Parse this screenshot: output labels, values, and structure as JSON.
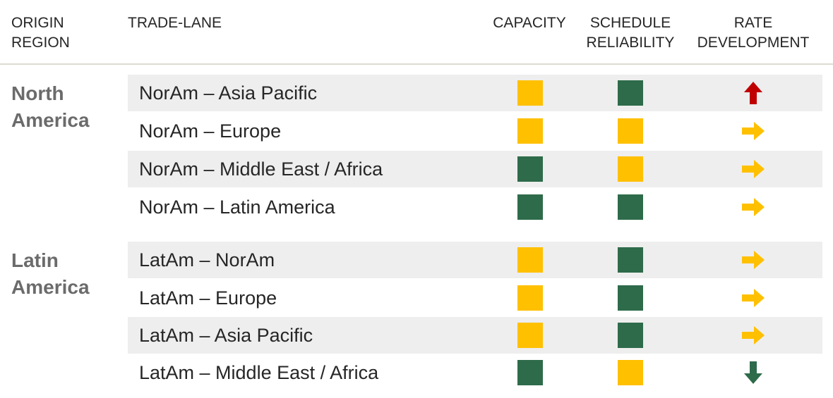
{
  "headers": {
    "origin_region": [
      "ORIGIN",
      "REGION"
    ],
    "trade_lane": "TRADE-LANE",
    "capacity": "CAPACITY",
    "schedule_reliability": [
      "SCHEDULE",
      "RELIABILITY"
    ],
    "rate_development": [
      "RATE",
      "DEVELOPMENT"
    ]
  },
  "colors": {
    "amber": "#ffc000",
    "green": "#2e6b4a",
    "up": "#c00000",
    "down": "#2e6b4a",
    "flat": "#ffc000",
    "region_text": "#6b6b6b",
    "row_shade": "#eeeeee"
  },
  "regions": [
    {
      "name": [
        "North",
        "America"
      ]
    },
    {
      "name": [
        "Latin",
        "America"
      ]
    }
  ],
  "chart_data": {
    "type": "table",
    "columns": [
      "ORIGIN REGION",
      "TRADE-LANE",
      "CAPACITY",
      "SCHEDULE RELIABILITY",
      "RATE DEVELOPMENT"
    ],
    "rows": [
      {
        "region": "North America",
        "lane": "NorAm – Asia Pacific",
        "capacity": "amber",
        "reliability": "green",
        "rate": "up"
      },
      {
        "region": "North America",
        "lane": "NorAm – Europe",
        "capacity": "amber",
        "reliability": "amber",
        "rate": "flat"
      },
      {
        "region": "North America",
        "lane": "NorAm – Middle East / Africa",
        "capacity": "green",
        "reliability": "amber",
        "rate": "flat"
      },
      {
        "region": "North America",
        "lane": "NorAm – Latin America",
        "capacity": "green",
        "reliability": "green",
        "rate": "flat"
      },
      {
        "region": "Latin America",
        "lane": "LatAm – NorAm",
        "capacity": "amber",
        "reliability": "green",
        "rate": "flat"
      },
      {
        "region": "Latin America",
        "lane": "LatAm – Europe",
        "capacity": "amber",
        "reliability": "green",
        "rate": "flat"
      },
      {
        "region": "Latin America",
        "lane": "LatAm – Asia Pacific",
        "capacity": "amber",
        "reliability": "green",
        "rate": "flat"
      },
      {
        "region": "Latin America",
        "lane": "LatAm – Middle East / Africa",
        "capacity": "green",
        "reliability": "amber",
        "rate": "down"
      }
    ]
  }
}
